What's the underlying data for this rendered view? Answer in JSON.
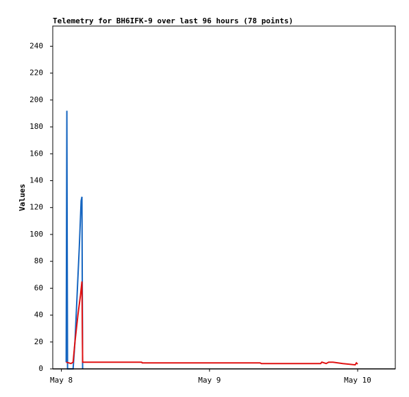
{
  "chart_data": {
    "type": "line",
    "title": "Telemetry for BH6IFK-9 over last 96 hours (78 points)",
    "y_label": "Values",
    "xlim": [
      -1.4,
      54.1
    ],
    "xticks": [
      {
        "value": 0,
        "label": "May 8"
      },
      {
        "value": 24,
        "label": "May 9"
      },
      {
        "value": 48,
        "label": "May 10"
      }
    ],
    "ylim": [
      0,
      255
    ],
    "yticks": [
      0,
      20,
      40,
      60,
      80,
      100,
      120,
      140,
      160,
      180,
      200,
      220,
      240
    ],
    "series": [
      {
        "color": "#1565c0",
        "x": [
          0.78,
          0.89,
          1.0,
          1.9,
          2.2,
          2.6,
          2.9,
          3.2,
          3.33,
          3.44
        ],
        "values": [
          5,
          192,
          0,
          0,
          20,
          60,
          90,
          125,
          128,
          0
        ]
      },
      {
        "color": "#e01010",
        "x": [
          0.78,
          1.56,
          1.9,
          2.2,
          2.67,
          3.1,
          3.33,
          3.44,
          13,
          13.1,
          32.2,
          32.4,
          42,
          42.2,
          42.9,
          43.3,
          44,
          45.6,
          47.6,
          47.8,
          48
        ],
        "values": [
          5,
          4,
          5,
          20,
          40,
          55,
          65,
          5,
          5,
          4.5,
          4.5,
          4,
          4,
          5,
          4,
          5,
          5,
          4,
          3,
          4.5,
          3.5
        ]
      }
    ]
  }
}
